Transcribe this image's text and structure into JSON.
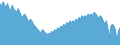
{
  "chart_data": {
    "type": "area",
    "values": [
      58,
      56,
      59,
      57,
      56,
      58,
      55,
      54,
      57,
      55,
      54,
      53,
      55,
      53,
      51,
      50,
      52,
      51,
      49,
      47,
      49,
      48,
      46,
      45,
      44,
      43,
      42,
      41,
      43,
      42,
      41,
      40,
      41,
      40,
      42,
      41,
      43,
      42,
      44,
      43,
      45,
      44,
      46,
      45,
      47,
      46,
      48,
      47,
      48,
      47,
      49,
      48,
      50,
      49,
      51,
      50,
      51,
      50,
      52,
      51,
      52,
      51,
      53,
      52,
      51,
      49,
      51,
      50,
      48,
      46,
      48,
      44,
      38,
      45,
      46,
      45,
      43,
      36,
      42,
      44
    ],
    "colors": [
      "#5aaad8",
      "#4d9fcc"
    ],
    "ylim": [
      34,
      60
    ],
    "tick_labels": false,
    "grid": false
  }
}
